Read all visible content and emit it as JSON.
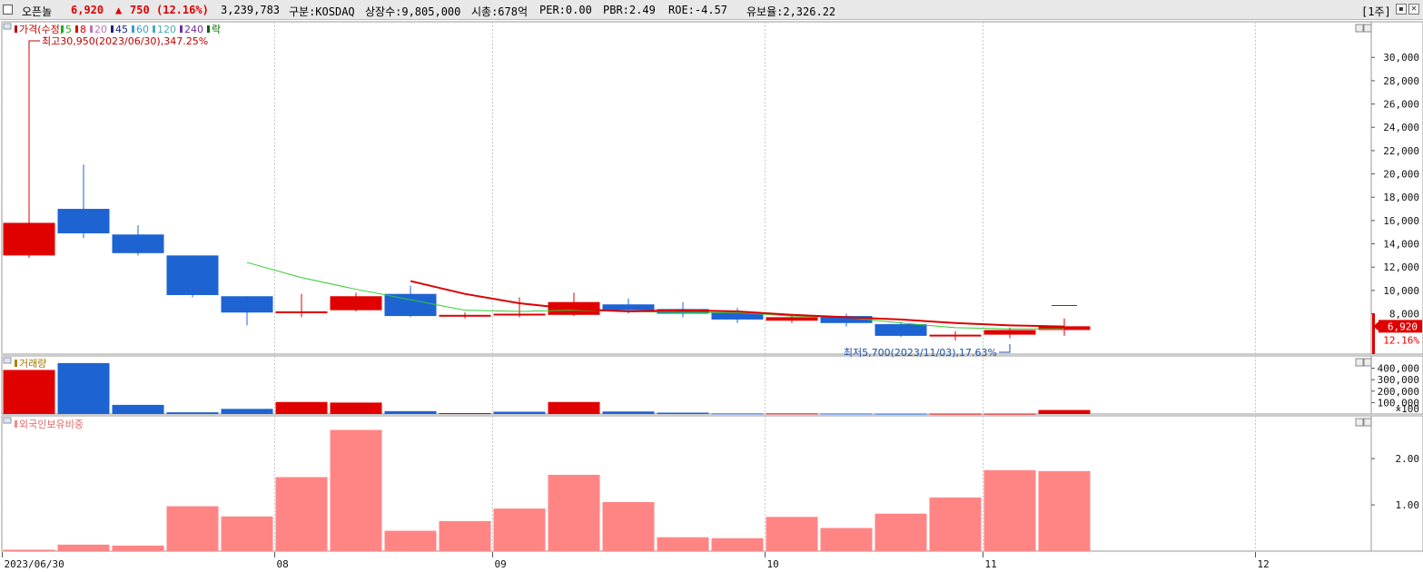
{
  "header": {
    "name": "오픈놀",
    "price": "6,920",
    "change_arrow": "▲",
    "change": "750",
    "change_pct": "(12.16%)",
    "volume": "3,239,783",
    "market": "구분:KOSDAQ",
    "listed": "상장수:9,805,000",
    "mktcap": "시총:678억",
    "per": "PER:0.00",
    "pbr": "PBR:2.49",
    "roe": "ROE:-4.57",
    "retention": "유보율:2,326.22",
    "period": "[1주]"
  },
  "legend": {
    "price": "가격(수정)",
    "ma": [
      "5",
      "8",
      "20",
      "45",
      "60",
      "120",
      "240"
    ],
    "drop": "락",
    "volume": "거래량",
    "foreign": "외국인보유비중"
  },
  "annotations": {
    "high": "최고30,950(2023/06/30),347.25%",
    "low": "최저5,700(2023/11/03),17.63%"
  },
  "last_price_tag": "6,920",
  "last_pct_tag": "12.16%",
  "colors": {
    "up": "#e00000",
    "down": "#1d63d2",
    "ma5": "#33cc33",
    "ma8": "#dd0000",
    "foreign": "#ff8585",
    "grid": "#c8c8c8"
  },
  "chart_data": [
    {
      "type": "candlestick",
      "ylim": [
        5000,
        31500
      ],
      "yticks": [
        "30,000",
        "28,000",
        "26,000",
        "24,000",
        "22,000",
        "20,000",
        "18,000",
        "16,000",
        "14,000",
        "12,000",
        "10,000",
        "8,000"
      ],
      "ytick_values": [
        30000,
        28000,
        26000,
        24000,
        22000,
        20000,
        18000,
        16000,
        14000,
        12000,
        10000,
        8000
      ],
      "xticks": [
        {
          "label": "2023/06/30",
          "i": 0
        },
        {
          "label": "08",
          "i": 5
        },
        {
          "label": "09",
          "i": 9
        },
        {
          "label": "10",
          "i": 14
        },
        {
          "label": "11",
          "i": 18
        },
        {
          "label": "12",
          "i": 23
        }
      ],
      "candles": [
        {
          "o": 13000,
          "h": 30950,
          "l": 12800,
          "c": 15800
        },
        {
          "o": 17000,
          "h": 20800,
          "l": 14500,
          "c": 14900
        },
        {
          "o": 14800,
          "h": 15600,
          "l": 13000,
          "c": 13200
        },
        {
          "o": 13000,
          "h": 13000,
          "l": 9400,
          "c": 9600
        },
        {
          "o": 9500,
          "h": 9500,
          "l": 7000,
          "c": 8100
        },
        {
          "o": 8100,
          "h": 9700,
          "l": 7700,
          "c": 8200
        },
        {
          "o": 8300,
          "h": 9800,
          "l": 8200,
          "c": 9500
        },
        {
          "o": 9700,
          "h": 10400,
          "l": 7700,
          "c": 7800
        },
        {
          "o": 7800,
          "h": 8100,
          "l": 7600,
          "c": 7900
        },
        {
          "o": 7900,
          "h": 9400,
          "l": 7700,
          "c": 8000
        },
        {
          "o": 7900,
          "h": 9800,
          "l": 7800,
          "c": 9000
        },
        {
          "o": 8800,
          "h": 9300,
          "l": 8000,
          "c": 8300
        },
        {
          "o": 8400,
          "h": 9000,
          "l": 7700,
          "c": 8000
        },
        {
          "o": 8100,
          "h": 8500,
          "l": 7200,
          "c": 7500
        },
        {
          "o": 7400,
          "h": 7900,
          "l": 7200,
          "c": 7700
        },
        {
          "o": 7800,
          "h": 8000,
          "l": 6900,
          "c": 7200
        },
        {
          "o": 7100,
          "h": 7300,
          "l": 6000,
          "c": 6100
        },
        {
          "o": 6100,
          "h": 6500,
          "l": 5700,
          "c": 6200
        },
        {
          "o": 6200,
          "h": 6800,
          "l": 5900,
          "c": 6600
        },
        {
          "o": 6600,
          "h": 7600,
          "l": 6100,
          "c": 6920
        }
      ],
      "extra_mark": {
        "i": 19,
        "value": 8700
      },
      "ma5": [
        null,
        null,
        null,
        null,
        12400,
        11100,
        10100,
        9200,
        8300,
        8200,
        8300,
        8200,
        8100,
        8100,
        7800,
        7700,
        7200,
        6800,
        6700,
        6700
      ],
      "ma8": [
        null,
        null,
        null,
        null,
        null,
        null,
        null,
        10800,
        9700,
        8900,
        8400,
        8200,
        8300,
        8200,
        7900,
        7700,
        7500,
        7200,
        7000,
        6900
      ]
    },
    {
      "type": "bar",
      "name": "거래량",
      "ylim": [
        0,
        460000
      ],
      "yticks": [
        "400,000",
        "300,000",
        "200,000",
        "100,000"
      ],
      "ytick_values": [
        400000,
        300000,
        200000,
        100000
      ],
      "unit_label": "×100",
      "values": [
        385000,
        445000,
        80000,
        15000,
        45000,
        105000,
        100000,
        25000,
        8000,
        20000,
        105000,
        22000,
        12000,
        5000,
        5000,
        4000,
        3000,
        3000,
        3000,
        35000
      ],
      "directions": [
        "up",
        "down",
        "down",
        "down",
        "down",
        "up",
        "up",
        "down",
        "up",
        "down",
        "up",
        "down",
        "down",
        "down",
        "up",
        "down",
        "down",
        "up",
        "up",
        "up"
      ]
    },
    {
      "type": "bar",
      "name": "외국인보유비중",
      "ylim": [
        0,
        2.65
      ],
      "yticks": [
        "2.00",
        "1.00"
      ],
      "ytick_values": [
        2.0,
        1.0
      ],
      "values": [
        0.03,
        0.14,
        0.12,
        0.97,
        0.75,
        1.6,
        2.62,
        0.44,
        0.65,
        0.92,
        1.65,
        1.06,
        0.3,
        0.28,
        0.74,
        0.5,
        0.81,
        1.16,
        1.75,
        1.73
      ]
    }
  ]
}
